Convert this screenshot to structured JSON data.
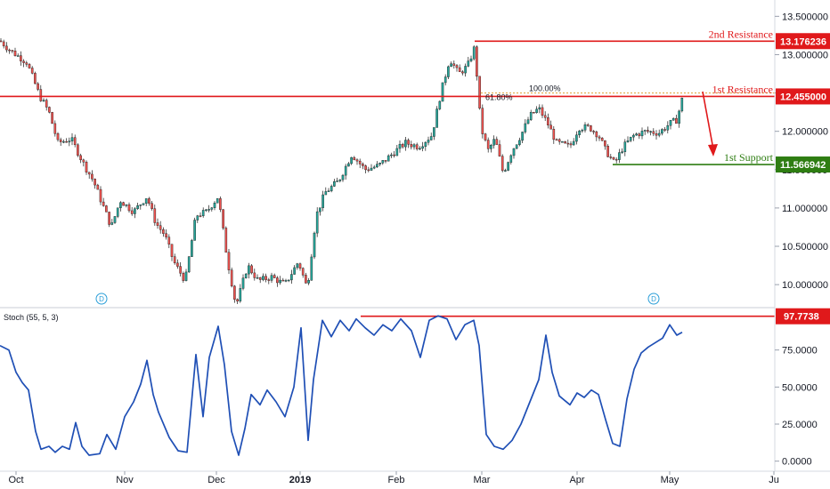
{
  "colors": {
    "up": "#26a69a",
    "down": "#ef5350",
    "wick": "#1b1b1b",
    "resistance": "#e0191b",
    "support": "#2e7d12",
    "stoch": "#1f4fb5",
    "fib": "#e0a030",
    "axis_bg": "#ffffff",
    "grid": "#e9ecf2"
  },
  "price_axis": {
    "ticks": [
      "13.500000",
      "13.000000",
      "12.500000",
      "12.000000",
      "11.500000",
      "11.000000",
      "10.500000",
      "10.000000"
    ],
    "tick_values": [
      13.5,
      13.0,
      12.5,
      12.0,
      11.5,
      11.0,
      10.5,
      10.0
    ],
    "range": [
      9.7,
      13.62
    ]
  },
  "time_axis": {
    "labels": [
      "Oct",
      "Nov",
      "Dec",
      "2019",
      "Feb",
      "Mar",
      "Apr",
      "May",
      "Ju"
    ]
  },
  "levels": {
    "second_resistance": {
      "label": "2nd Resistance",
      "value": 13.176236,
      "tag": "13.176236"
    },
    "first_resistance": {
      "label": "1st Resistance",
      "value": 12.455,
      "tag": "12.455000"
    },
    "first_support": {
      "label": "1st Support",
      "value": 11.566942,
      "tag": "11.566942"
    }
  },
  "fib": {
    "label_left": "61.80%",
    "label_right": "100.00%",
    "value": 12.5
  },
  "markers": [
    "D",
    "D"
  ],
  "stoch": {
    "title": "Stoch (55, 5, 3)",
    "ticks": [
      "75.0000",
      "50.0000",
      "25.0000",
      "0.0000"
    ],
    "tick_values": [
      75,
      50,
      25,
      0
    ],
    "range": [
      -2,
      100
    ],
    "level": {
      "value": 97.7738,
      "tag": "97.7738"
    }
  },
  "chart_data": {
    "type": "candlestick",
    "symbol_scale": "USD/TRY-like pair",
    "x": [
      "Oct",
      "Oct",
      "Nov",
      "Nov",
      "Dec",
      "Dec",
      "2019",
      "2019",
      "Feb",
      "Feb",
      "Mar",
      "Mar",
      "Apr",
      "Apr",
      "May"
    ],
    "price_path": [
      [
        0,
        13.18
      ],
      [
        12,
        13.05
      ],
      [
        30,
        12.9
      ],
      [
        45,
        12.45
      ],
      [
        55,
        12.25
      ],
      [
        65,
        11.85
      ],
      [
        80,
        11.9
      ],
      [
        95,
        11.55
      ],
      [
        105,
        11.35
      ],
      [
        115,
        11.05
      ],
      [
        125,
        10.75
      ],
      [
        135,
        11.1
      ],
      [
        150,
        10.95
      ],
      [
        165,
        11.15
      ],
      [
        175,
        10.8
      ],
      [
        185,
        10.65
      ],
      [
        195,
        10.3
      ],
      [
        208,
        10.05
      ],
      [
        220,
        10.9
      ],
      [
        232,
        10.95
      ],
      [
        245,
        11.15
      ],
      [
        255,
        10.35
      ],
      [
        265,
        9.72
      ],
      [
        278,
        10.25
      ],
      [
        290,
        10.05
      ],
      [
        305,
        10.1
      ],
      [
        320,
        10.0
      ],
      [
        335,
        10.3
      ],
      [
        345,
        9.95
      ],
      [
        355,
        10.9
      ],
      [
        365,
        11.2
      ],
      [
        380,
        11.35
      ],
      [
        395,
        11.7
      ],
      [
        410,
        11.5
      ],
      [
        425,
        11.55
      ],
      [
        440,
        11.7
      ],
      [
        455,
        11.85
      ],
      [
        470,
        11.8
      ],
      [
        485,
        11.95
      ],
      [
        495,
        12.5
      ],
      [
        505,
        12.95
      ],
      [
        515,
        12.75
      ],
      [
        525,
        12.85
      ],
      [
        533,
        13.1
      ],
      [
        540,
        12.05
      ],
      [
        548,
        11.75
      ],
      [
        556,
        11.9
      ],
      [
        565,
        11.45
      ],
      [
        575,
        11.75
      ],
      [
        585,
        11.95
      ],
      [
        595,
        12.2
      ],
      [
        605,
        12.3
      ],
      [
        615,
        12.1
      ],
      [
        625,
        11.85
      ],
      [
        640,
        11.8
      ],
      [
        650,
        12.05
      ],
      [
        662,
        12.05
      ],
      [
        672,
        11.95
      ],
      [
        680,
        11.75
      ],
      [
        690,
        11.58
      ],
      [
        700,
        11.8
      ],
      [
        712,
        11.95
      ],
      [
        725,
        12.0
      ],
      [
        740,
        11.98
      ],
      [
        752,
        12.1
      ],
      [
        760,
        12.15
      ],
      [
        766,
        12.42
      ]
    ],
    "stoch_path": [
      [
        0,
        78
      ],
      [
        10,
        75
      ],
      [
        18,
        60
      ],
      [
        25,
        53
      ],
      [
        32,
        48
      ],
      [
        40,
        20
      ],
      [
        46,
        8
      ],
      [
        55,
        10
      ],
      [
        62,
        6
      ],
      [
        70,
        10
      ],
      [
        78,
        8
      ],
      [
        85,
        26
      ],
      [
        92,
        10
      ],
      [
        100,
        4
      ],
      [
        112,
        5
      ],
      [
        120,
        18
      ],
      [
        130,
        8
      ],
      [
        140,
        30
      ],
      [
        150,
        40
      ],
      [
        158,
        52
      ],
      [
        165,
        68
      ],
      [
        172,
        45
      ],
      [
        178,
        33
      ],
      [
        190,
        16
      ],
      [
        200,
        7
      ],
      [
        210,
        6
      ],
      [
        220,
        72
      ],
      [
        228,
        30
      ],
      [
        235,
        70
      ],
      [
        245,
        91
      ],
      [
        252,
        65
      ],
      [
        260,
        20
      ],
      [
        268,
        4
      ],
      [
        275,
        22
      ],
      [
        282,
        45
      ],
      [
        292,
        38
      ],
      [
        300,
        48
      ],
      [
        310,
        40
      ],
      [
        320,
        30
      ],
      [
        330,
        50
      ],
      [
        338,
        90
      ],
      [
        346,
        14
      ],
      [
        352,
        55
      ],
      [
        362,
        95
      ],
      [
        372,
        84
      ],
      [
        382,
        95
      ],
      [
        392,
        88
      ],
      [
        400,
        96
      ],
      [
        410,
        90
      ],
      [
        420,
        85
      ],
      [
        430,
        92
      ],
      [
        440,
        88
      ],
      [
        450,
        96
      ],
      [
        462,
        88
      ],
      [
        472,
        70
      ],
      [
        482,
        95
      ],
      [
        492,
        98
      ],
      [
        502,
        96
      ],
      [
        512,
        82
      ],
      [
        522,
        92
      ],
      [
        532,
        95
      ],
      [
        538,
        78
      ],
      [
        546,
        18
      ],
      [
        555,
        10
      ],
      [
        565,
        8
      ],
      [
        575,
        14
      ],
      [
        585,
        25
      ],
      [
        595,
        40
      ],
      [
        605,
        55
      ],
      [
        613,
        85
      ],
      [
        620,
        60
      ],
      [
        628,
        44
      ],
      [
        640,
        38
      ],
      [
        648,
        46
      ],
      [
        656,
        43
      ],
      [
        664,
        48
      ],
      [
        672,
        45
      ],
      [
        680,
        28
      ],
      [
        688,
        12
      ],
      [
        696,
        10
      ],
      [
        704,
        42
      ],
      [
        712,
        62
      ],
      [
        720,
        73
      ],
      [
        728,
        77
      ],
      [
        736,
        80
      ],
      [
        744,
        83
      ],
      [
        752,
        92
      ],
      [
        760,
        85
      ],
      [
        766,
        87
      ]
    ]
  }
}
